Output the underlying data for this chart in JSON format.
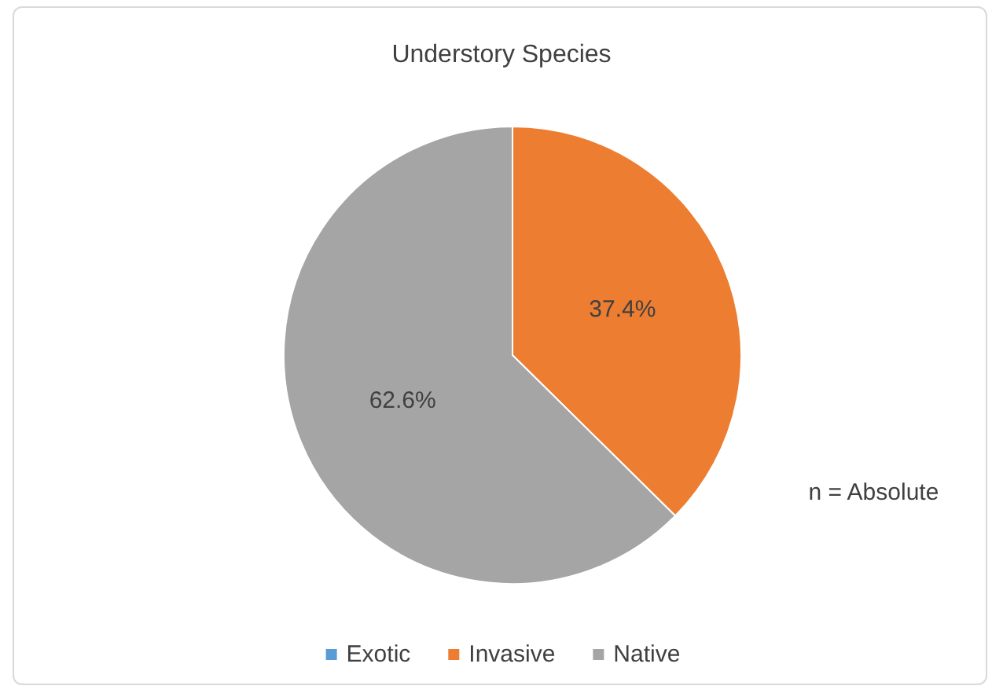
{
  "chart_data": {
    "type": "pie",
    "title": "Understory Species",
    "categories": [
      "Exotic",
      "Invasive",
      "Native"
    ],
    "values": [
      0,
      37.4,
      62.6
    ],
    "colors": [
      "#5b9bd5",
      "#ed7d31",
      "#a5a5a5"
    ],
    "value_labels": [
      null,
      "37.4%",
      "62.6%"
    ],
    "annotations": [
      "n = Absolute"
    ],
    "legend": "bottom"
  }
}
